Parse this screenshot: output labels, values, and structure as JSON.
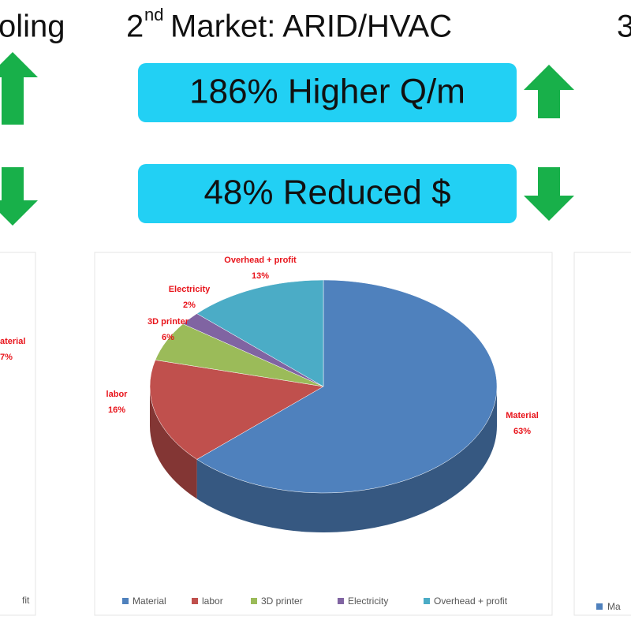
{
  "header": {
    "title_number": "2",
    "title_sup": "nd",
    "title_text": "Market: ARID/HVAC",
    "left_cut_title": "oling",
    "right_cut_title": "3"
  },
  "badges": [
    "186% Higher Q/m",
    "48% Reduced $"
  ],
  "left_panel": {
    "label": "aterial",
    "percent": "7%",
    "legend_fragment": "fit"
  },
  "right_panel": {
    "legend_fragment": "Ma"
  },
  "chart_data": {
    "type": "pie",
    "categories": [
      "Material",
      "labor",
      "3D printer",
      "Electricity",
      "Overhead + profit"
    ],
    "values": [
      63,
      16,
      6,
      2,
      13
    ],
    "value_labels": [
      "63%",
      "16%",
      "6%",
      "2%",
      "13%"
    ],
    "colors": [
      "#4f81bd",
      "#c0504d",
      "#9bbb59",
      "#8064a2",
      "#4bacc6"
    ],
    "legend": "bottom"
  }
}
